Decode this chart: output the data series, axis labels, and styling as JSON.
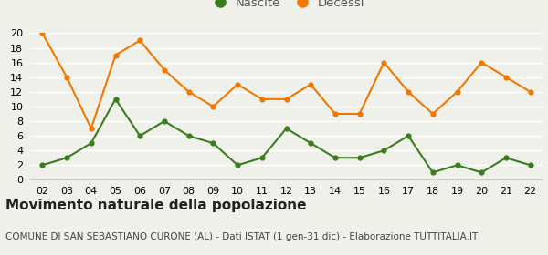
{
  "years": [
    "02",
    "03",
    "04",
    "05",
    "06",
    "07",
    "08",
    "09",
    "10",
    "11",
    "12",
    "13",
    "14",
    "15",
    "16",
    "17",
    "18",
    "19",
    "20",
    "21",
    "22"
  ],
  "nascite": [
    2,
    3,
    5,
    11,
    6,
    8,
    6,
    5,
    2,
    3,
    7,
    5,
    3,
    3,
    4,
    6,
    1,
    2,
    1,
    3,
    2
  ],
  "decessi": [
    20,
    14,
    7,
    17,
    19,
    15,
    12,
    10,
    13,
    11,
    11,
    13,
    9,
    9,
    16,
    12,
    9,
    12,
    16,
    14,
    12
  ],
  "nascite_color": "#3a7d1e",
  "decessi_color": "#f07800",
  "background_color": "#f0f0eb",
  "grid_color": "#ffffff",
  "ylim": [
    0,
    20
  ],
  "yticks": [
    0,
    2,
    4,
    6,
    8,
    10,
    12,
    14,
    16,
    18,
    20
  ],
  "title": "Movimento naturale della popolazione",
  "subtitle": "COMUNE DI SAN SEBASTIANO CURONE (AL) - Dati ISTAT (1 gen-31 dic) - Elaborazione TUTTITALIA.IT",
  "legend_nascite": "Nascite",
  "legend_decessi": "Decessi",
  "title_fontsize": 11,
  "subtitle_fontsize": 7.5,
  "tick_fontsize": 8,
  "legend_fontsize": 9.5
}
